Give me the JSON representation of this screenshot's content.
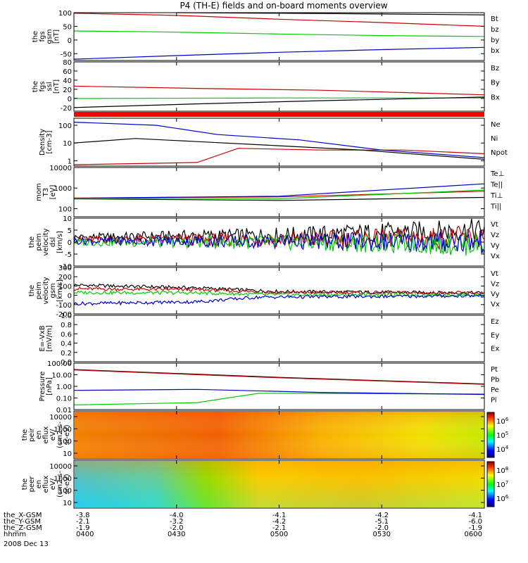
{
  "chart_data": {
    "type": "line",
    "title": "P4 (TH-E) fields and on-board moments overview",
    "date_label": "2008 Dec 13",
    "x_axis": {
      "row_labels": [
        "the_X-GSM",
        "the_Y-GSM",
        "the_Z-GSM",
        "hhmm"
      ],
      "ticks": [
        {
          "values": [
            "-3.8",
            "-2.1",
            "-1.9",
            "0400"
          ]
        },
        {
          "values": [
            "-4.0",
            "-3.2",
            "-2.0",
            "0430"
          ]
        },
        {
          "values": [
            "-4.1",
            "-4.2",
            "-2.1",
            "0500"
          ]
        },
        {
          "values": [
            "-4.2",
            "-5.1",
            "-2.0",
            "0530"
          ]
        },
        {
          "values": [
            "-4.1",
            "-6.0",
            "-1.9",
            "0600"
          ]
        }
      ],
      "range": [
        "0400",
        "0600"
      ]
    },
    "panels": [
      {
        "id": "fgs_gsm",
        "ylabel": [
          "the",
          "fgs",
          "gsm",
          "[nT]"
        ],
        "yticks": [
          "100",
          "50",
          "0",
          "-50"
        ],
        "ylim": [
          -75,
          100
        ],
        "series": [
          {
            "name": "Bt",
            "color": "#000000",
            "values": [
              [
                0.25,
                102
              ],
              [
                0.5,
                98
              ],
              [
                0.75,
                95
              ],
              [
                1.0,
                92
              ]
            ]
          },
          {
            "name": "bz",
            "color": "#cc0000",
            "values": [
              [
                0.0,
                98
              ],
              [
                0.25,
                90
              ],
              [
                0.5,
                76
              ],
              [
                0.75,
                64
              ],
              [
                1.0,
                50
              ]
            ]
          },
          {
            "name": "by",
            "color": "#00cc00",
            "values": [
              [
                0.0,
                33
              ],
              [
                0.2,
                30
              ],
              [
                0.5,
                22
              ],
              [
                0.75,
                16
              ],
              [
                1.0,
                13
              ]
            ]
          },
          {
            "name": "bx",
            "color": "#0000cc",
            "values": [
              [
                0.0,
                -70
              ],
              [
                0.25,
                -57
              ],
              [
                0.5,
                -45
              ],
              [
                0.75,
                -35
              ],
              [
                1.0,
                -27
              ]
            ]
          }
        ]
      },
      {
        "id": "fgs_ssl",
        "ylabel": [
          "the",
          "fgs",
          "ssl",
          "[nT]"
        ],
        "yticks": [
          "80",
          "60",
          "40",
          "20",
          "0",
          "-20"
        ],
        "ylim": [
          -28,
          80
        ],
        "series": [
          {
            "name": "Bz",
            "color": "#cc0000",
            "values": [
              [
                0.0,
                27
              ],
              [
                0.3,
                22
              ],
              [
                0.6,
                18
              ],
              [
                1.0,
                8
              ]
            ]
          },
          {
            "name": "By",
            "color": "#00cc00",
            "values": [
              [
                0.0,
                0
              ],
              [
                0.5,
                1
              ],
              [
                1.0,
                1
              ]
            ]
          },
          {
            "name": "Bx",
            "color": "#000000",
            "values": [
              [
                0.0,
                -20
              ],
              [
                0.3,
                -12
              ],
              [
                0.6,
                -5
              ],
              [
                1.0,
                3
              ]
            ]
          }
        ]
      },
      {
        "id": "density",
        "ylabel": [
          "Density",
          "[cm-3]"
        ],
        "yticks": [
          "100",
          "10",
          "1"
        ],
        "ylim": [
          0.5,
          250
        ],
        "series": [
          {
            "name": "Ne",
            "color": "#cc0000",
            "values": [
              [
                0.0,
                0.6
              ],
              [
                0.3,
                0.8
              ],
              [
                0.4,
                5
              ],
              [
                0.6,
                4
              ],
              [
                0.8,
                4
              ],
              [
                1.0,
                2.5
              ]
            ]
          },
          {
            "name": "Ni",
            "color": "#000000",
            "values": [
              [
                0.0,
                10
              ],
              [
                0.15,
                18
              ],
              [
                0.3,
                12
              ],
              [
                0.5,
                7
              ],
              [
                0.7,
                4
              ],
              [
                1.0,
                1.2
              ]
            ]
          },
          {
            "name": "Npot",
            "color": "#0000cc",
            "values": [
              [
                0.0,
                150
              ],
              [
                0.2,
                100
              ],
              [
                0.35,
                30
              ],
              [
                0.55,
                15
              ],
              [
                0.75,
                4
              ],
              [
                1.0,
                1.5
              ]
            ]
          }
        ]
      },
      {
        "id": "temperature",
        "ylabel": [
          "mom",
          "T3",
          "[eV]"
        ],
        "yticks": [
          "10000",
          "1000",
          "100"
        ],
        "ylim": [
          40,
          10000
        ],
        "series": [
          {
            "name": "Te⊥",
            "color": "#cc0000",
            "values": [
              [
                0.0,
                330
              ],
              [
                0.5,
                370
              ],
              [
                1.0,
                700
              ]
            ]
          },
          {
            "name": "Te||",
            "color": "#000000",
            "values": [
              [
                0.0,
                300
              ],
              [
                0.5,
                250
              ],
              [
                1.0,
                350
              ]
            ]
          },
          {
            "name": "Ti⊥",
            "color": "#0000cc",
            "values": [
              [
                0.0,
                320
              ],
              [
                0.5,
                400
              ],
              [
                1.0,
                1600
              ]
            ]
          },
          {
            "name": "Ti||",
            "color": "#00cc00",
            "values": [
              [
                0.0,
                320
              ],
              [
                0.5,
                300
              ],
              [
                1.0,
                800
              ]
            ]
          }
        ]
      },
      {
        "id": "velocity_dsl",
        "ylabel": [
          "the",
          "peim",
          "velocity",
          "dsl",
          "[km/s]"
        ],
        "yticks": [
          "10",
          "5",
          "0",
          "-5",
          "-10"
        ],
        "ylim": [
          -10,
          10
        ],
        "series": [
          {
            "name": "Vt",
            "color": "#000000",
            "values": [
              [
                0.0,
                2
              ],
              [
                0.5,
                3
              ],
              [
                1.0,
                5
              ]
            ]
          },
          {
            "name": "Vz",
            "color": "#cc0000",
            "values": [
              [
                0.0,
                1
              ],
              [
                0.5,
                1
              ],
              [
                1.0,
                2
              ]
            ]
          },
          {
            "name": "Vy",
            "color": "#00cc00",
            "values": [
              [
                0.0,
                0
              ],
              [
                0.5,
                0
              ],
              [
                1.0,
                -1
              ]
            ]
          },
          {
            "name": "Vx",
            "color": "#0000cc",
            "values": [
              [
                0.0,
                0.5
              ],
              [
                0.5,
                0.3
              ],
              [
                1.0,
                0
              ]
            ]
          }
        ]
      },
      {
        "id": "velocity_gsm",
        "ylabel": [
          "the",
          "peim",
          "velocity",
          "gsm",
          "[km/s]"
        ],
        "yticks": [
          "300",
          "200",
          "100",
          "0",
          "-100",
          "-200"
        ],
        "ylim": [
          -200,
          300
        ],
        "series": [
          {
            "name": "Vt",
            "color": "#000000",
            "values": [
              [
                0.0,
                110
              ],
              [
                0.3,
                80
              ],
              [
                0.5,
                40
              ],
              [
                1.0,
                25
              ]
            ]
          },
          {
            "name": "Vz",
            "color": "#cc0000",
            "values": [
              [
                0.0,
                70
              ],
              [
                0.3,
                60
              ],
              [
                0.5,
                30
              ],
              [
                1.0,
                25
              ]
            ]
          },
          {
            "name": "Vy",
            "color": "#00cc00",
            "values": [
              [
                0.0,
                30
              ],
              [
                0.3,
                25
              ],
              [
                0.5,
                5
              ],
              [
                1.0,
                5
              ]
            ]
          },
          {
            "name": "Vx",
            "color": "#0000cc",
            "values": [
              [
                0.0,
                -90
              ],
              [
                0.3,
                -70
              ],
              [
                0.45,
                -20
              ],
              [
                1.0,
                -5
              ]
            ]
          }
        ]
      },
      {
        "id": "efield",
        "ylabel": [
          "E=-VxB",
          "[mV/m]"
        ],
        "yticks": [
          "1.0",
          "0.8",
          "0.6",
          "0.4",
          "0.2",
          "0.0"
        ],
        "ylim": [
          0,
          1
        ],
        "series": [
          {
            "name": "Ez",
            "color": "#cc0000",
            "values": []
          },
          {
            "name": "Ey",
            "color": "#00cc00",
            "values": []
          },
          {
            "name": "Ex",
            "color": "#0000cc",
            "values": []
          }
        ]
      },
      {
        "id": "pressure",
        "ylabel": [
          "Pressure",
          "[nPa]"
        ],
        "yticks": [
          "100.00",
          "10.00",
          "1.00",
          "0.10",
          "0.01"
        ],
        "ylim": [
          0.01,
          100
        ],
        "series": [
          {
            "name": "Pt",
            "color": "#000000",
            "values": [
              [
                0.0,
                28
              ],
              [
                0.5,
                6
              ],
              [
                1.0,
                1.6
              ]
            ]
          },
          {
            "name": "Pb",
            "color": "#cc0000",
            "values": [
              [
                0.0,
                26
              ],
              [
                0.5,
                5.5
              ],
              [
                1.0,
                1.5
              ]
            ]
          },
          {
            "name": "Pe",
            "color": "#00cc00",
            "values": [
              [
                0.0,
                0.025
              ],
              [
                0.3,
                0.04
              ],
              [
                0.45,
                0.25
              ],
              [
                1.0,
                0.22
              ]
            ]
          },
          {
            "name": "Pi",
            "color": "#0000cc",
            "values": [
              [
                0.0,
                0.45
              ],
              [
                0.3,
                0.55
              ],
              [
                0.6,
                0.3
              ],
              [
                1.0,
                0.2
              ]
            ]
          }
        ]
      },
      {
        "id": "peir_spectrogram",
        "type": "heatmap",
        "ylabel": [
          "the",
          "peir",
          "en",
          "eflux",
          "eV/",
          "(cm2-s-",
          "sr-eV)"
        ],
        "yticks": [
          "10000",
          "1000",
          "100",
          "10"
        ],
        "colorbar_ticks": [
          "10^6",
          "10^5",
          "10^4"
        ]
      },
      {
        "id": "peer_spectrogram",
        "type": "heatmap",
        "ylabel": [
          "the",
          "peer",
          "en",
          "eflux",
          "eV/",
          "(cm2-s-",
          "sr-eV)"
        ],
        "yticks": [
          "10000",
          "1000",
          "100",
          "10"
        ],
        "colorbar_ticks": [
          "10^8",
          "10^7",
          "10^6"
        ]
      }
    ]
  },
  "colors": {
    "black": "#000000",
    "red": "#cc0000",
    "green": "#00cc00",
    "blue": "#0000cc"
  }
}
